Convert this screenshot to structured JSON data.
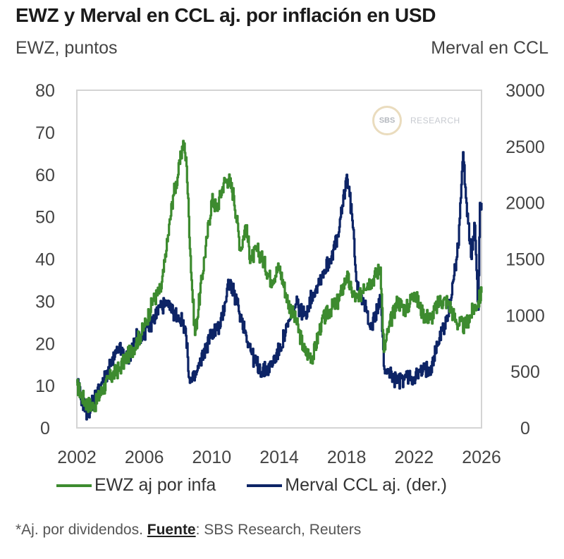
{
  "header": {
    "title": "EWZ y Merval en CCL aj. por inflación en USD",
    "left_axis_label": "EWZ, puntos",
    "right_axis_label": "Merval en CCL"
  },
  "watermark": {
    "circle_text": "SBS",
    "text": "RESEARCH"
  },
  "footer": {
    "note_prefix": "*Aj. por dividendos. ",
    "source_label": "Fuente",
    "source_text": ": SBS Research, Reuters"
  },
  "colors": {
    "ewz": "#3d8b2f",
    "merval": "#0d2466",
    "frame": "#d4d4d4"
  },
  "chart_data": {
    "type": "line",
    "title": "EWZ y Merval en CCL aj. por inflación en USD",
    "xlabel": "",
    "ylabel": "EWZ, puntos",
    "y2label": "Merval en CCL",
    "xlim": [
      2002,
      2026
    ],
    "ylim": [
      0,
      80
    ],
    "y2lim": [
      0,
      3000
    ],
    "x_ticks": [
      "2002",
      "2006",
      "2010",
      "2014",
      "2018",
      "2022",
      "2026"
    ],
    "y_ticks": [
      "0",
      "10",
      "20",
      "30",
      "40",
      "50",
      "60",
      "70",
      "80"
    ],
    "y2_ticks": [
      "0",
      "500",
      "1000",
      "1500",
      "2000",
      "2500",
      "3000"
    ],
    "grid": false,
    "legend_position": "bottom",
    "series": [
      {
        "name": "EWZ aj por infa",
        "axis": "left",
        "x": [
          2002.0,
          2002.5,
          2003.0,
          2003.5,
          2004.0,
          2004.5,
          2005.0,
          2005.5,
          2006.0,
          2006.5,
          2007.0,
          2007.3,
          2007.7,
          2008.0,
          2008.3,
          2008.5,
          2008.8,
          2009.0,
          2009.3,
          2009.7,
          2010.0,
          2010.3,
          2010.7,
          2011.0,
          2011.3,
          2011.7,
          2012.0,
          2012.3,
          2012.7,
          2013.0,
          2013.5,
          2014.0,
          2014.5,
          2015.0,
          2015.5,
          2016.0,
          2016.5,
          2017.0,
          2017.5,
          2018.0,
          2018.3,
          2018.7,
          2019.0,
          2019.5,
          2020.0,
          2020.2,
          2020.5,
          2021.0,
          2021.5,
          2022.0,
          2022.5,
          2023.0,
          2023.5,
          2024.0,
          2024.5,
          2025.0,
          2025.5,
          2025.8,
          2026.0
        ],
        "values": [
          10,
          6,
          5,
          9,
          12,
          14,
          17,
          20,
          24,
          30,
          33,
          42,
          55,
          60,
          68,
          62,
          35,
          22,
          32,
          45,
          54,
          52,
          58,
          59,
          55,
          42,
          48,
          40,
          42,
          40,
          35,
          38,
          30,
          25,
          18,
          17,
          25,
          28,
          30,
          36,
          32,
          30,
          34,
          35,
          38,
          18,
          24,
          30,
          28,
          32,
          27,
          26,
          30,
          30,
          25,
          24,
          28,
          30,
          32
        ]
      },
      {
        "name": "Merval CCL aj. (der.)",
        "axis": "right",
        "x": [
          2002.0,
          2002.3,
          2002.6,
          2003.0,
          2003.5,
          2004.0,
          2004.5,
          2005.0,
          2005.5,
          2006.0,
          2006.5,
          2007.0,
          2007.5,
          2008.0,
          2008.4,
          2008.7,
          2009.0,
          2009.5,
          2010.0,
          2010.5,
          2011.0,
          2011.3,
          2011.7,
          2012.0,
          2012.5,
          2013.0,
          2013.5,
          2014.0,
          2014.5,
          2015.0,
          2015.5,
          2016.0,
          2016.5,
          2017.0,
          2017.5,
          2018.0,
          2018.3,
          2018.6,
          2019.0,
          2019.5,
          2020.0,
          2020.2,
          2020.5,
          2021.0,
          2021.5,
          2022.0,
          2022.5,
          2023.0,
          2023.5,
          2024.0,
          2024.3,
          2024.6,
          2024.9,
          2025.1,
          2025.4,
          2025.6,
          2025.8,
          2025.9,
          2026.0
        ],
        "values": [
          400,
          250,
          120,
          250,
          400,
          550,
          700,
          600,
          800,
          850,
          950,
          1100,
          1050,
          1000,
          900,
          400,
          450,
          650,
          850,
          900,
          1300,
          1200,
          1000,
          850,
          600,
          500,
          550,
          700,
          900,
          1100,
          1000,
          1200,
          1350,
          1500,
          1700,
          2250,
          1900,
          1300,
          1100,
          900,
          1150,
          550,
          500,
          400,
          450,
          450,
          500,
          550,
          800,
          1000,
          1300,
          1600,
          2450,
          2000,
          1500,
          1800,
          1050,
          2000,
          2000
        ]
      }
    ]
  }
}
